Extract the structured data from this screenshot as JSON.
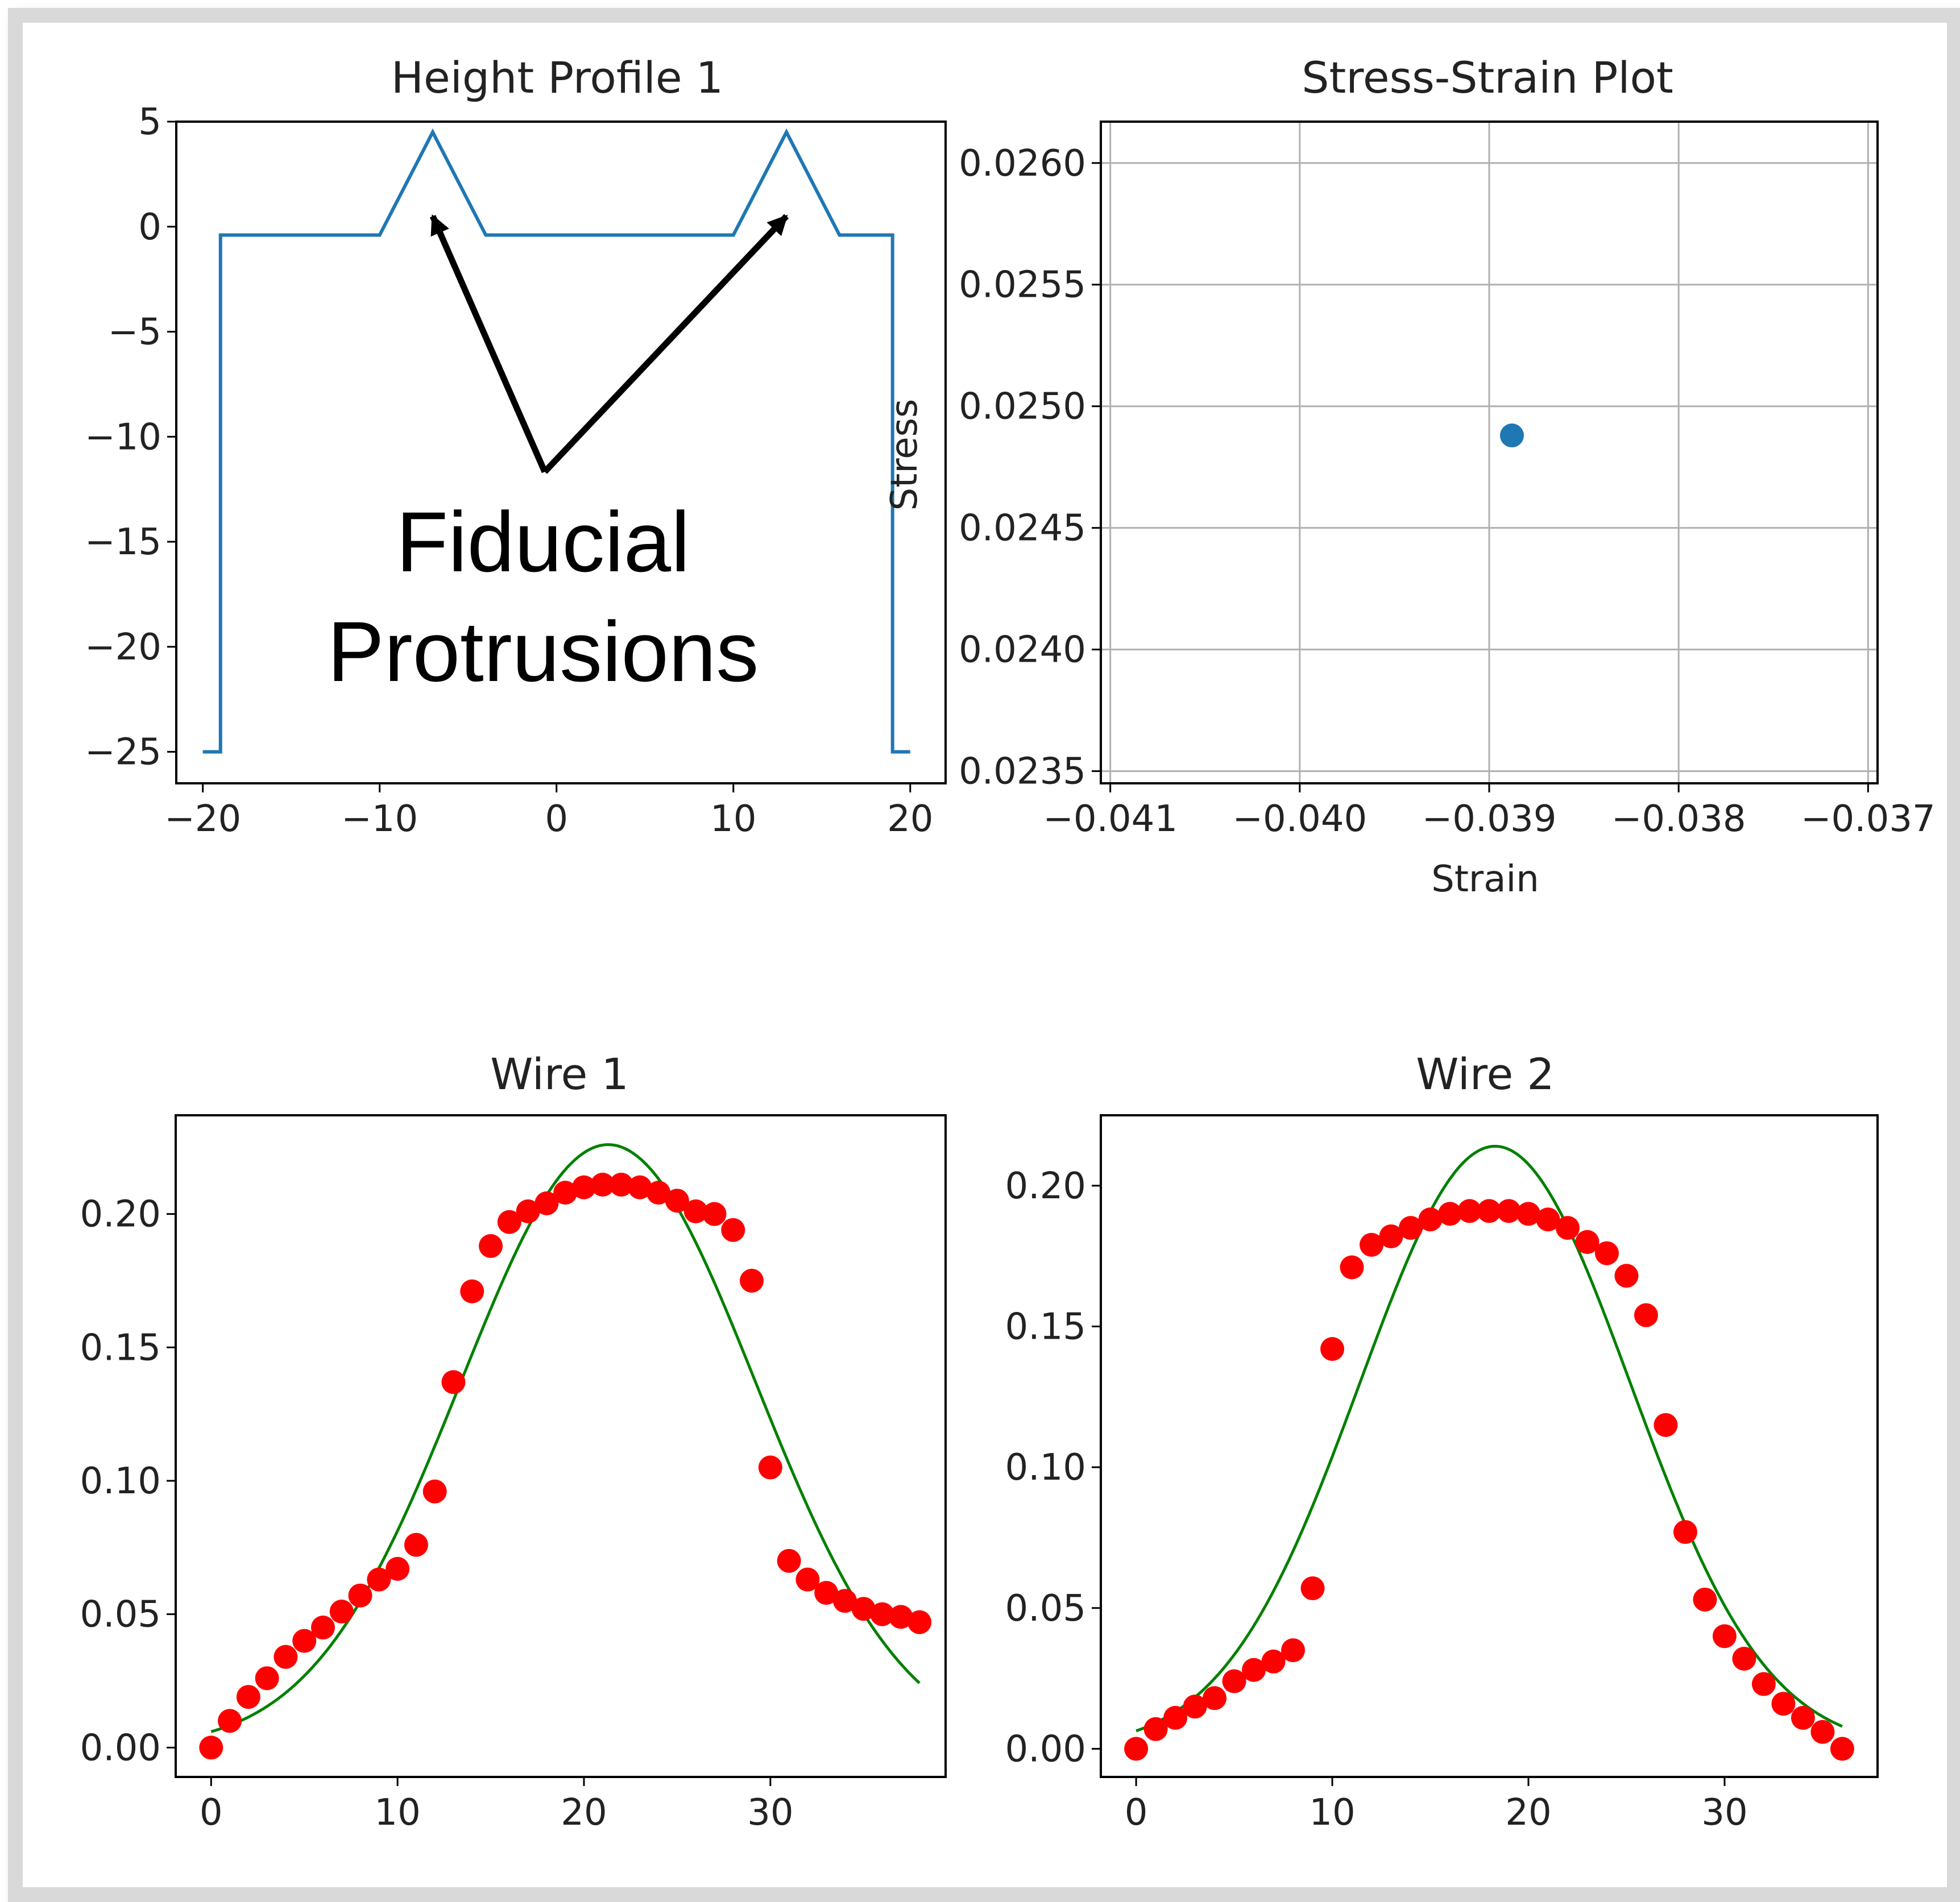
{
  "chart_data": [
    {
      "type": "line",
      "title": "Height Profile 1",
      "xlabel": "",
      "ylabel": "",
      "xlim": [
        -21.5,
        22
      ],
      "ylim": [
        -26.5,
        5
      ],
      "xticks": [
        -20,
        -10,
        0,
        10,
        20
      ],
      "xtick_labels": [
        "−20",
        "−10",
        "0",
        "10",
        "20"
      ],
      "yticks": [
        5,
        0,
        -5,
        -10,
        -15,
        -20,
        -25
      ],
      "ytick_labels": [
        "5",
        "0",
        "−5",
        "−10",
        "−15",
        "−20",
        "−25"
      ],
      "grid": false,
      "line_color": "#1f77b4",
      "x": [
        -20,
        -19,
        -19,
        -10,
        -7,
        -4,
        10,
        13,
        16,
        19,
        19,
        20
      ],
      "y": [
        -25,
        -25,
        -0.4,
        -0.4,
        4.5,
        -0.4,
        -0.4,
        4.5,
        -0.4,
        -0.4,
        -25,
        -25
      ],
      "annotation": {
        "text_lines": [
          "Fiducial",
          "Protrusions"
        ],
        "color": "#000000",
        "arrow_targets": [
          [
            -7,
            0.5
          ],
          [
            13,
            0.5
          ]
        ]
      }
    },
    {
      "type": "scatter",
      "title": "Stress-Strain Plot",
      "xlabel": "Strain",
      "ylabel": "Stress",
      "xlim": [
        -0.04105,
        -0.03695
      ],
      "ylim": [
        0.02345,
        0.02617
      ],
      "xticks": [
        -0.041,
        -0.04,
        -0.039,
        -0.038,
        -0.037
      ],
      "xtick_labels": [
        "−0.041",
        "−0.040",
        "−0.039",
        "−0.038",
        "−0.037"
      ],
      "yticks": [
        0.0235,
        0.024,
        0.0245,
        0.025,
        0.0255,
        0.026
      ],
      "ytick_labels": [
        "0.0235",
        "0.0240",
        "0.0245",
        "0.0250",
        "0.0255",
        "0.0260"
      ],
      "grid": true,
      "marker_color": "#1f77b4",
      "points": [
        {
          "x": -0.03888,
          "y": 0.02488
        }
      ]
    },
    {
      "type": "scatter",
      "title": "Wire 1",
      "xlabel": "",
      "ylabel": "",
      "xlim": [
        -1.9,
        39.4
      ],
      "ylim": [
        -0.011,
        0.237
      ],
      "xticks": [
        0,
        10,
        20,
        30
      ],
      "xtick_labels": [
        "0",
        "10",
        "20",
        "30"
      ],
      "yticks": [
        0.0,
        0.05,
        0.1,
        0.15,
        0.2
      ],
      "ytick_labels": [
        "0.00",
        "0.05",
        "0.10",
        "0.15",
        "0.20"
      ],
      "grid": false,
      "marker_color": "#ff0000",
      "fit_color": "#008000",
      "fit": {
        "amplitude": 0.226,
        "center": 21.3,
        "sigma": 7.9
      },
      "fit_x_range": [
        0,
        38
      ],
      "x": [
        0,
        1,
        2,
        3,
        4,
        5,
        6,
        7,
        8,
        9,
        10,
        11,
        12,
        13,
        14,
        15,
        16,
        17,
        18,
        19,
        20,
        21,
        22,
        23,
        24,
        25,
        26,
        27,
        28,
        29,
        30,
        31,
        32,
        33,
        34,
        35,
        36,
        37,
        38
      ],
      "values": [
        0.0,
        0.01,
        0.019,
        0.026,
        0.034,
        0.04,
        0.045,
        0.051,
        0.057,
        0.063,
        0.067,
        0.076,
        0.096,
        0.137,
        0.171,
        0.188,
        0.197,
        0.201,
        0.204,
        0.208,
        0.21,
        0.211,
        0.211,
        0.21,
        0.208,
        0.205,
        0.201,
        0.2,
        0.194,
        0.175,
        0.105,
        0.07,
        0.063,
        0.058,
        0.055,
        0.052,
        0.05,
        0.049,
        0.047
      ]
    },
    {
      "type": "scatter",
      "title": "Wire 2",
      "xlabel": "",
      "ylabel": "",
      "xlim": [
        -1.8,
        37.8
      ],
      "ylim": [
        -0.01,
        0.225
      ],
      "xticks": [
        0,
        10,
        20,
        30
      ],
      "xtick_labels": [
        "0",
        "10",
        "20",
        "30"
      ],
      "yticks": [
        0.0,
        0.05,
        0.1,
        0.15,
        0.2
      ],
      "ytick_labels": [
        "0.00",
        "0.05",
        "0.10",
        "0.15",
        "0.20"
      ],
      "grid": false,
      "marker_color": "#ff0000",
      "fit_color": "#008000",
      "fit": {
        "amplitude": 0.214,
        "center": 18.3,
        "sigma": 6.9
      },
      "fit_x_range": [
        0,
        36
      ],
      "x": [
        0,
        1,
        2,
        3,
        4,
        5,
        6,
        7,
        8,
        9,
        10,
        11,
        12,
        13,
        14,
        15,
        16,
        17,
        18,
        19,
        20,
        21,
        22,
        23,
        24,
        25,
        26,
        27,
        28,
        29,
        30,
        31,
        32,
        33,
        34,
        35,
        36
      ],
      "values": [
        0.0,
        0.007,
        0.011,
        0.015,
        0.018,
        0.024,
        0.028,
        0.031,
        0.035,
        0.057,
        0.142,
        0.171,
        0.179,
        0.182,
        0.185,
        0.188,
        0.19,
        0.191,
        0.191,
        0.191,
        0.19,
        0.188,
        0.185,
        0.18,
        0.176,
        0.168,
        0.154,
        0.115,
        0.077,
        0.053,
        0.04,
        0.032,
        0.023,
        0.016,
        0.011,
        0.006,
        0.0
      ]
    }
  ]
}
